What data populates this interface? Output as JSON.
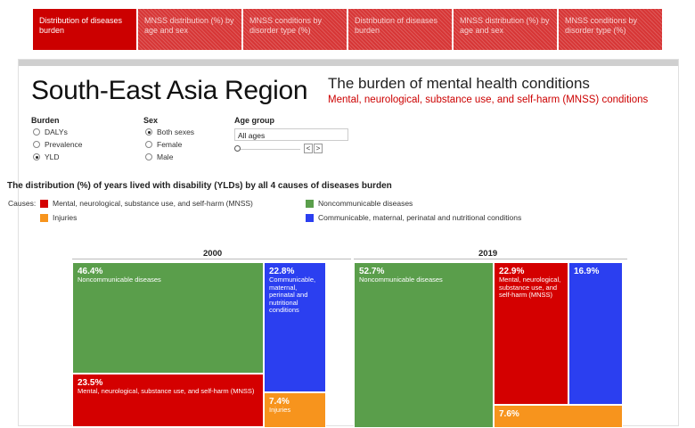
{
  "tabs": [
    {
      "label": "Distribution of diseases burden"
    },
    {
      "label": "MNSS distribution (%) by age and sex"
    },
    {
      "label": "MNSS conditions by disorder type (%)"
    },
    {
      "label": "Distribution of diseases burden"
    },
    {
      "label": "MNSS distribution (%) by age and sex"
    },
    {
      "label": "MNSS conditions by disorder type (%)"
    }
  ],
  "header": {
    "region": "South-East Asia Region",
    "title": "The burden of mental health conditions",
    "subtitle": "Mental, neurological, substance use, and self-harm (MNSS) conditions"
  },
  "filters": {
    "burden": {
      "label": "Burden",
      "options": [
        "DALYs",
        "Prevalence",
        "YLD"
      ],
      "selected": "YLD"
    },
    "sex": {
      "label": "Sex",
      "options": [
        "Both sexes",
        "Female",
        "Male"
      ],
      "selected": "Both sexes"
    },
    "age": {
      "label": "Age group",
      "value": "All ages",
      "prev": "<",
      "next": ">"
    }
  },
  "chart": {
    "heading": "The distribution (%) of years lived with disability (YLDs) by all 4 causes of diseases burden",
    "causes_label": "Causes:",
    "legend": [
      {
        "name": "Mental, neurological, substance use, and self-harm (MNSS)",
        "color": "#d40000"
      },
      {
        "name": "Noncommunicable diseases",
        "color": "#5a9e4b"
      },
      {
        "name": "Injuries",
        "color": "#f7941d"
      },
      {
        "name": "Communicable, maternal, perinatal and nutritional conditions",
        "color": "#2b3ff0"
      }
    ]
  },
  "chart_data": [
    {
      "type": "treemap",
      "title": "2000",
      "items": [
        {
          "name": "Noncommunicable diseases",
          "value": 46.4,
          "pct": "46.4%"
        },
        {
          "name": "Mental, neurological, substance use, and self-harm (MNSS)",
          "value": 23.5,
          "pct": "23.5%"
        },
        {
          "name": "Communicable, maternal, perinatal and nutritional conditions",
          "value": 22.8,
          "pct": "22.8%"
        },
        {
          "name": "Injuries",
          "value": 7.4,
          "pct": "7.4%"
        }
      ]
    },
    {
      "type": "treemap",
      "title": "2019",
      "items": [
        {
          "name": "Noncommunicable diseases",
          "value": 52.7,
          "pct": "52.7%"
        },
        {
          "name": "Mental, neurological, substance use, and self-harm (MNSS)",
          "value": 22.9,
          "pct": "22.9%"
        },
        {
          "name": "Communicable, maternal, perinatal and nutritional conditions",
          "value": 16.9,
          "pct": "16.9%"
        },
        {
          "name": "Injuries",
          "value": 7.6,
          "pct": "7.6%"
        }
      ]
    }
  ]
}
